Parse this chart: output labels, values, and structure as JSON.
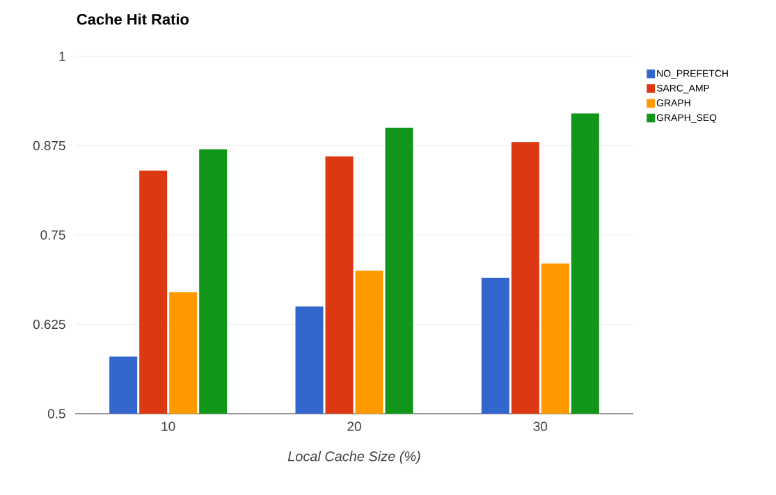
{
  "chart_data": {
    "type": "bar",
    "title": "Cache Hit Ratio",
    "xlabel": "Local Cache Size (%)",
    "categories": [
      "10",
      "20",
      "30"
    ],
    "series": [
      {
        "name": "NO_PREFETCH",
        "color": "#3366cc",
        "values": [
          0.58,
          0.65,
          0.69
        ]
      },
      {
        "name": "SARC_AMP",
        "color": "#dc3912",
        "values": [
          0.84,
          0.86,
          0.88
        ]
      },
      {
        "name": "GRAPH",
        "color": "#ff9900",
        "values": [
          0.67,
          0.7,
          0.71
        ]
      },
      {
        "name": "GRAPH_SEQ",
        "color": "#109618",
        "values": [
          0.87,
          0.9,
          0.92
        ]
      }
    ],
    "ylim": [
      0.5,
      1
    ],
    "yticks": [
      0.5,
      0.625,
      0.75,
      0.875,
      1
    ],
    "grid": "y",
    "legend": "top right"
  }
}
